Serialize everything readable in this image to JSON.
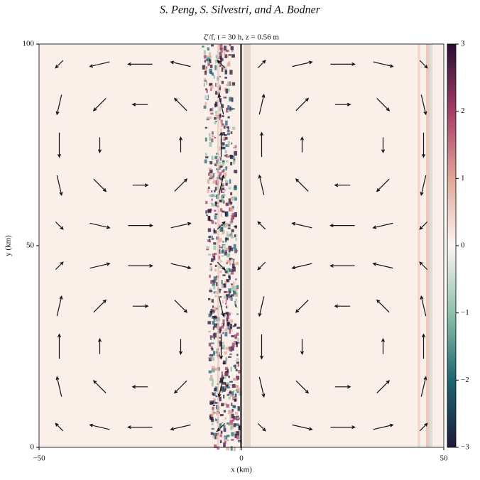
{
  "header": "S. Peng, S. Silvestri, and A. Bodner",
  "chart_data": {
    "type": "quiver",
    "title": "ζ′/f, t = 30 h, z = 0.56 m",
    "x_label": "x (km)",
    "y_label": "y (km)",
    "xlim": [
      -50,
      50
    ],
    "xticks": [
      {
        "value": -50,
        "label": "−50"
      },
      0,
      50
    ],
    "ylim": [
      0,
      100
    ],
    "yticks": [
      0,
      50,
      100
    ],
    "color": "#111111",
    "quiver": {
      "x": [
        -45,
        -35,
        -25,
        -15,
        -5,
        5,
        15,
        25,
        35,
        45
      ],
      "y": [
        5,
        15,
        25,
        35,
        45,
        55,
        65,
        75,
        85,
        95
      ],
      "u": [
        [
          -0.29,
          -0.77,
          -0.95,
          -0.77,
          -0.29,
          0.29,
          0.77,
          0.95,
          0.77,
          0.29
        ],
        [
          -0.18,
          -0.48,
          -0.59,
          -0.48,
          -0.18,
          0.18,
          0.48,
          0.59,
          0.48,
          0.18
        ],
        [
          0,
          0,
          0,
          0,
          0,
          0,
          0,
          0,
          0,
          0
        ],
        [
          0.18,
          0.48,
          0.59,
          0.48,
          0.18,
          -0.18,
          -0.48,
          -0.59,
          -0.48,
          -0.18
        ],
        [
          0.29,
          0.77,
          0.95,
          0.77,
          0.29,
          -0.29,
          -0.77,
          -0.95,
          -0.77,
          -0.29
        ],
        [
          0.29,
          0.77,
          0.95,
          0.77,
          0.29,
          -0.29,
          -0.77,
          -0.95,
          -0.77,
          -0.29
        ],
        [
          0.18,
          0.48,
          0.59,
          0.48,
          0.18,
          -0.18,
          -0.48,
          -0.59,
          -0.48,
          -0.18
        ],
        [
          0,
          0,
          0,
          0,
          0,
          0,
          0,
          0,
          0,
          0
        ],
        [
          -0.18,
          -0.48,
          -0.59,
          -0.48,
          -0.18,
          0.18,
          0.48,
          0.59,
          0.48,
          0.18
        ],
        [
          -0.29,
          -0.77,
          -0.95,
          -0.77,
          -0.29,
          0.29,
          0.77,
          0.95,
          0.77,
          0.29
        ]
      ],
      "v": [
        [
          0.29,
          0.18,
          0,
          -0.18,
          -0.29,
          -0.29,
          -0.18,
          0,
          0.18,
          0.29
        ],
        [
          0.77,
          0.48,
          0,
          -0.48,
          -0.77,
          -0.77,
          -0.48,
          0,
          0.48,
          0.77
        ],
        [
          0.95,
          0.59,
          0,
          -0.59,
          -0.95,
          -0.95,
          -0.59,
          0,
          0.59,
          0.95
        ],
        [
          0.77,
          0.48,
          0,
          -0.48,
          -0.77,
          -0.77,
          -0.48,
          0,
          0.48,
          0.77
        ],
        [
          0.29,
          0.18,
          0,
          -0.18,
          -0.29,
          -0.29,
          -0.18,
          0,
          0.18,
          0.29
        ],
        [
          -0.29,
          -0.18,
          0,
          0.18,
          0.29,
          0.29,
          0.18,
          0,
          -0.18,
          -0.29
        ],
        [
          -0.77,
          -0.48,
          0,
          0.48,
          0.77,
          0.77,
          0.48,
          0,
          -0.48,
          -0.77
        ],
        [
          -0.95,
          -0.59,
          0,
          0.59,
          0.95,
          0.95,
          0.59,
          0,
          -0.59,
          -0.95
        ],
        [
          -0.77,
          -0.48,
          0,
          0.48,
          0.77,
          0.77,
          0.48,
          0,
          -0.48,
          -0.77
        ],
        [
          -0.29,
          -0.18,
          0,
          0.18,
          0.29,
          0.29,
          0.18,
          0,
          -0.18,
          -0.29
        ]
      ]
    },
    "colorbar": {
      "lim": [
        -3,
        3
      ],
      "ticks": [
        {
          "value": -3,
          "label": "−3"
        },
        {
          "value": -2,
          "label": "−2"
        },
        {
          "value": -1,
          "label": "−1"
        },
        0,
        1,
        2,
        3
      ],
      "colors": [
        "#1c1a3a",
        "#1d6672",
        "#8fc0ab",
        "#fbf6f3",
        "#e2a596",
        "#a33d68",
        "#2a0d31"
      ]
    }
  }
}
